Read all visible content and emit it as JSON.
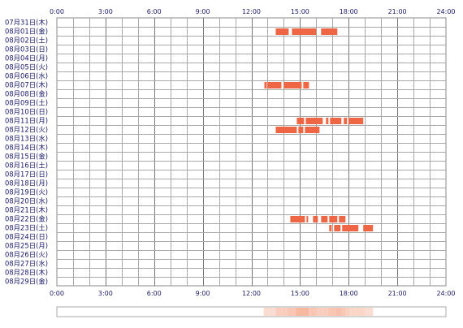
{
  "chart_data": {
    "type": "timeline",
    "title": "",
    "xlabel": "",
    "ylabel": "",
    "x_axis": {
      "ticks": [
        "0:00",
        "3:00",
        "6:00",
        "9:00",
        "12:00",
        "15:00",
        "18:00",
        "21:00",
        "24:00"
      ],
      "range_hours": [
        0,
        24
      ]
    },
    "grid": true,
    "bar_color": "#ee6644",
    "summary_color": "#f7b8a0",
    "rows": [
      {
        "label": "07月31日(木)",
        "segments": []
      },
      {
        "label": "08月01日(金)",
        "segments": [
          [
            13.5,
            14.3
          ],
          [
            14.5,
            16.0
          ],
          [
            16.3,
            17.3
          ]
        ]
      },
      {
        "label": "08月02日(土)",
        "segments": []
      },
      {
        "label": "08月03日(日)",
        "segments": []
      },
      {
        "label": "08月04日(月)",
        "segments": []
      },
      {
        "label": "08月05日(火)",
        "segments": []
      },
      {
        "label": "08月06日(水)",
        "segments": []
      },
      {
        "label": "08月07日(木)",
        "segments": [
          [
            12.8,
            12.95
          ],
          [
            13.0,
            13.85
          ],
          [
            14.0,
            15.1
          ],
          [
            15.2,
            15.55
          ]
        ]
      },
      {
        "label": "08月08日(金)",
        "segments": []
      },
      {
        "label": "08月09日(土)",
        "segments": []
      },
      {
        "label": "08月10日(日)",
        "segments": []
      },
      {
        "label": "08月11日(月)",
        "segments": [
          [
            14.8,
            15.25
          ],
          [
            15.35,
            16.4
          ],
          [
            16.6,
            16.75
          ],
          [
            16.85,
            17.55
          ],
          [
            17.7,
            17.9
          ],
          [
            18.0,
            18.9
          ]
        ]
      },
      {
        "label": "08月12日(火)",
        "segments": [
          [
            13.5,
            14.8
          ],
          [
            14.9,
            15.2
          ],
          [
            15.3,
            16.2
          ]
        ]
      },
      {
        "label": "08月13日(水)",
        "segments": []
      },
      {
        "label": "08月14日(木)",
        "segments": []
      },
      {
        "label": "08月15日(金)",
        "segments": []
      },
      {
        "label": "08月16日(土)",
        "segments": []
      },
      {
        "label": "08月17日(日)",
        "segments": []
      },
      {
        "label": "08月18日(月)",
        "segments": []
      },
      {
        "label": "08月19日(火)",
        "segments": []
      },
      {
        "label": "08月20日(水)",
        "segments": []
      },
      {
        "label": "08月21日(木)",
        "segments": []
      },
      {
        "label": "08月22日(金)",
        "segments": [
          [
            14.4,
            15.3
          ],
          [
            15.4,
            15.5
          ],
          [
            15.8,
            16.1
          ],
          [
            16.3,
            16.7
          ],
          [
            16.8,
            17.3
          ],
          [
            17.4,
            17.8
          ]
        ]
      },
      {
        "label": "08月23日(土)",
        "segments": [
          [
            16.8,
            16.95
          ],
          [
            17.1,
            17.5
          ],
          [
            17.6,
            18.6
          ],
          [
            18.9,
            19.5
          ]
        ]
      },
      {
        "label": "08月24日(日)",
        "segments": []
      },
      {
        "label": "08月25日(月)",
        "segments": []
      },
      {
        "label": "08月26日(火)",
        "segments": []
      },
      {
        "label": "08月27日(水)",
        "segments": []
      },
      {
        "label": "08月28日(木)",
        "segments": []
      },
      {
        "label": "08月29日(金)",
        "segments": []
      }
    ]
  }
}
